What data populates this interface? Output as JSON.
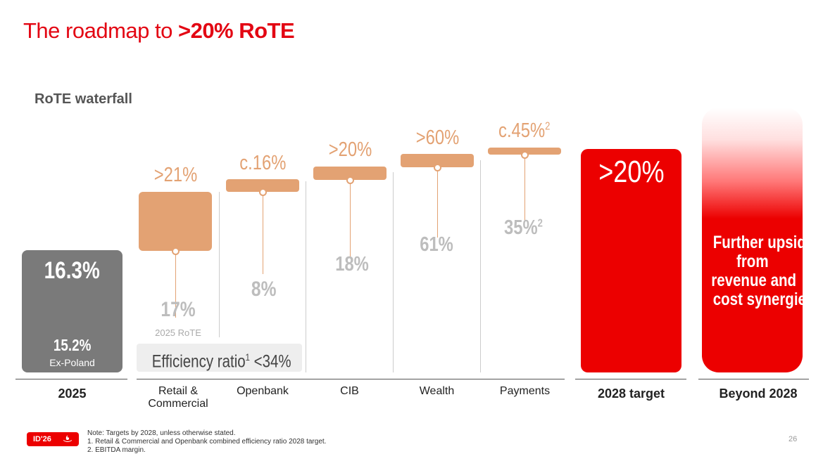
{
  "title_prefix": "The roadmap to ",
  "title_highlight": ">20% RoTE",
  "subtitle": "RoTE waterfall",
  "chart_data": {
    "type": "bar",
    "title": "RoTE waterfall",
    "categories": [
      "2025",
      "Retail & Commercial",
      "Openbank",
      "CIB",
      "Wealth",
      "Payments",
      "2028 target",
      "Beyond 2028"
    ],
    "bar_2025": {
      "value": "16.3%",
      "sub_value": "15.2%",
      "sub_label": "Ex-Poland"
    },
    "segments": [
      {
        "name": "Retail & Commercial",
        "label_top": "Retail &",
        "label_bottom": "Commercial",
        "target": ">21%",
        "current": "17%",
        "note": "2025 RoTE"
      },
      {
        "name": "Openbank",
        "label_top": "Openbank",
        "target": "c.16%",
        "current": "8%"
      },
      {
        "name": "CIB",
        "label_top": "CIB",
        "target": ">20%",
        "current": "18%"
      },
      {
        "name": "Wealth",
        "label_top": "Wealth",
        "target": ">60%",
        "current": "61%"
      },
      {
        "name": "Payments",
        "label_top": "Payments",
        "target": "c.45%",
        "target_sup": "2",
        "current": "35%",
        "current_sup": "2"
      }
    ],
    "efficiency": {
      "label": "Efficiency ratio",
      "sup": "1",
      "value": " <34%"
    },
    "bar_2028": {
      "label": "2028 target",
      "value": ">20%"
    },
    "bar_beyond": {
      "label": "Beyond 2028",
      "lines": [
        "Further upside",
        "from",
        "revenue and",
        "cost synergies"
      ]
    }
  },
  "colors": {
    "accent": "#ec0000",
    "segment": "#e3a273",
    "bar_2025": "#7a7a7a"
  },
  "footer": {
    "badge": "ID'26",
    "notes": [
      "Note: Targets by 2028, unless otherwise stated.",
      "1.  Retail & Commercial and Openbank combined efficiency ratio 2028 target.",
      "2.  EBITDA margin."
    ],
    "page_number": "26"
  }
}
